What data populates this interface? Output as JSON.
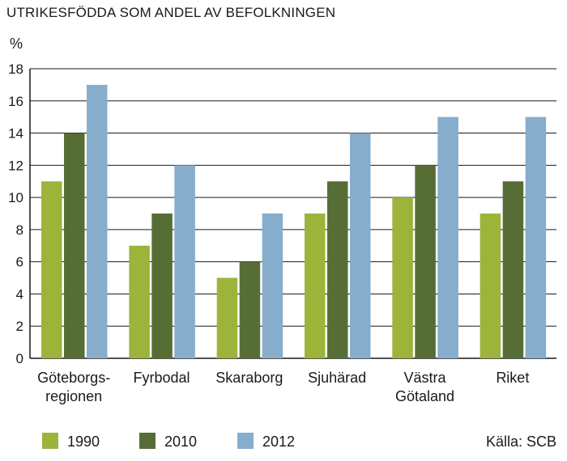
{
  "chart_data": {
    "type": "bar",
    "title": "UTRIKESFÖDDA SOM ANDEL AV BEFOLKNINGEN",
    "ylabel": "%",
    "xlabel": "",
    "categories": [
      [
        "Göteborgs-",
        "regionen"
      ],
      [
        "Fyrbodal"
      ],
      [
        "Skaraborg"
      ],
      [
        "Sjuhärad"
      ],
      [
        "Västra",
        "Götaland"
      ],
      [
        "Riket"
      ]
    ],
    "series": [
      {
        "name": "1990",
        "color": "#9cb43a",
        "values": [
          11,
          7,
          5,
          9,
          10,
          9
        ]
      },
      {
        "name": "2010",
        "color": "#566e36",
        "values": [
          14,
          9,
          6,
          11,
          12,
          11
        ]
      },
      {
        "name": "2012",
        "color": "#87adcd",
        "values": [
          17,
          12,
          9,
          14,
          15,
          15
        ]
      }
    ],
    "ylim": [
      0,
      18
    ],
    "yticks": [
      0,
      2,
      4,
      6,
      8,
      10,
      12,
      14,
      16,
      18
    ],
    "grid": true,
    "legend": "bottom-left",
    "source": "Källa: SCB"
  }
}
